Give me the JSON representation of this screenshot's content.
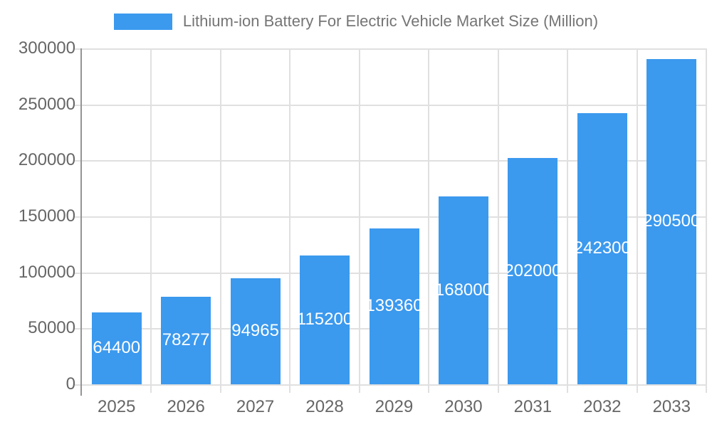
{
  "legend": {
    "label": "Lithium-ion Battery For Electric Vehicle Market Size (Million)",
    "swatch_color": "#3B99EE",
    "position": "top"
  },
  "colors": {
    "bar": "#3B99EE",
    "grid": "#E0E0E0",
    "axis_line": "#949494",
    "tick_label": "#666666",
    "title_text": "#757575",
    "bar_label": "#FFFFFF",
    "background": "#FFFFFF"
  },
  "chart_data": {
    "type": "bar",
    "title": "Lithium-ion Battery For Electric Vehicle Market Size (Million)",
    "categories": [
      "2025",
      "2026",
      "2027",
      "2028",
      "2029",
      "2030",
      "2031",
      "2032",
      "2033"
    ],
    "values": [
      64400,
      78277,
      94965,
      115200,
      139360,
      168000,
      202000,
      242300,
      290500
    ],
    "series": [
      {
        "name": "Lithium-ion Battery For Electric Vehicle Market Size (Million)",
        "values": [
          64400,
          78277,
          94965,
          115200,
          139360,
          168000,
          202000,
          242300,
          290500
        ]
      }
    ],
    "xlabel": "",
    "ylabel": "",
    "ylim": [
      0,
      300000
    ],
    "ytick_step": 50000,
    "yticks": [
      0,
      50000,
      100000,
      150000,
      200000,
      250000,
      300000
    ],
    "grid": true,
    "legend_position": "top",
    "bar_value_labels": "inside-center-white"
  }
}
